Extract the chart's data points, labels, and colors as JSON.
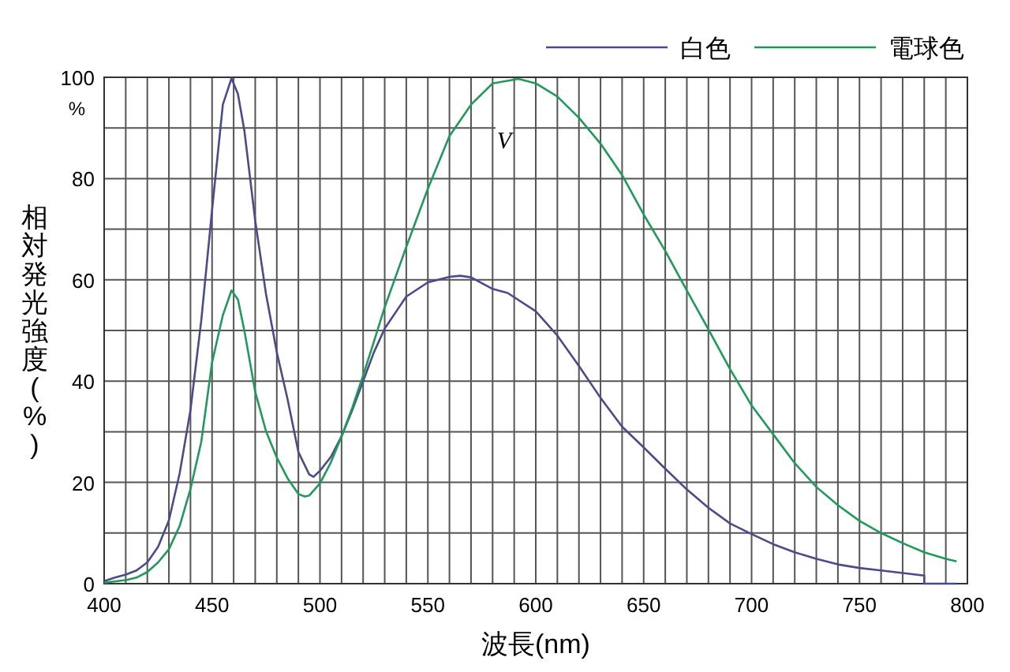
{
  "chart_data": {
    "type": "line",
    "xlabel": "波長(nm)",
    "ylabel": "相対発光強度(%)",
    "xlim": [
      400,
      800
    ],
    "ylim": [
      0,
      100
    ],
    "xticks": [
      400,
      {
        "value": 410,
        "label": null
      },
      {
        "value": 420,
        "label": null
      },
      {
        "value": 430,
        "label": null
      },
      {
        "value": 440,
        "label": null
      },
      450,
      {
        "value": 460,
        "label": null
      },
      {
        "value": 470,
        "label": null
      },
      {
        "value": 480,
        "label": null
      },
      {
        "value": 490,
        "label": null
      },
      500,
      {
        "value": 510,
        "label": null
      },
      {
        "value": 520,
        "label": null
      },
      {
        "value": 530,
        "label": null
      },
      {
        "value": 540,
        "label": null
      },
      550,
      {
        "value": 560,
        "label": null
      },
      {
        "value": 570,
        "label": null
      },
      {
        "value": 580,
        "label": null
      },
      {
        "value": 590,
        "label": null
      },
      600,
      {
        "value": 610,
        "label": null
      },
      {
        "value": 620,
        "label": null
      },
      {
        "value": 630,
        "label": null
      },
      {
        "value": 640,
        "label": null
      },
      650,
      {
        "value": 660,
        "label": null
      },
      {
        "value": 670,
        "label": null
      },
      {
        "value": 680,
        "label": null
      },
      {
        "value": 690,
        "label": null
      },
      700,
      {
        "value": 710,
        "label": null
      },
      {
        "value": 720,
        "label": null
      },
      {
        "value": 730,
        "label": null
      },
      {
        "value": 740,
        "label": null
      },
      750,
      {
        "value": 760,
        "label": null
      },
      {
        "value": 770,
        "label": null
      },
      {
        "value": 780,
        "label": null
      },
      {
        "value": 790,
        "label": null
      },
      800
    ],
    "yticks": [
      0,
      {
        "value": 10,
        "label": null
      },
      20,
      {
        "value": 30,
        "label": null
      },
      40,
      {
        "value": 50,
        "label": null
      },
      60,
      {
        "value": 70,
        "label": null
      },
      80,
      {
        "value": 90,
        "label": null
      },
      100
    ],
    "grid": true,
    "legend": "top right",
    "annotations": [
      "%",
      "V"
    ],
    "series": [
      {
        "name": "白色",
        "color": "#4a4a8c",
        "x": [
          400,
          405,
          410,
          415,
          420,
          425,
          430,
          435,
          440,
          445,
          450,
          455,
          459,
          462,
          465,
          470,
          475,
          480,
          485,
          490,
          495,
          497,
          500,
          505,
          510,
          515,
          520,
          525,
          530,
          540,
          550,
          560,
          565,
          570,
          580,
          587,
          600,
          610,
          620,
          630,
          640,
          650,
          660,
          670,
          680,
          690,
          700,
          710,
          720,
          730,
          740,
          750,
          760,
          770,
          780,
          780,
          795
        ],
        "values": [
          0.5,
          1.2,
          1.8,
          2.6,
          4.2,
          7.3,
          12.5,
          21.8,
          34.3,
          52,
          73.8,
          94.6,
          99.8,
          96.7,
          89.4,
          71.7,
          57.2,
          45.7,
          36.4,
          26,
          21.6,
          21.1,
          22.3,
          25,
          29.1,
          34.3,
          40,
          45.7,
          50.4,
          56.7,
          59.5,
          60.6,
          60.8,
          60.5,
          58.2,
          57.4,
          53.8,
          49,
          43,
          36.7,
          31,
          26.9,
          22.7,
          18.6,
          15,
          11.9,
          9.8,
          7.8,
          6.2,
          4.9,
          3.8,
          3.1,
          2.6,
          2.1,
          1.6,
          0,
          0
        ]
      },
      {
        "name": "電球色",
        "color": "#1f9a5a",
        "x": [
          400,
          410,
          415,
          420,
          425,
          430,
          435,
          440,
          445,
          450,
          455,
          459,
          462,
          465,
          470,
          475,
          480,
          485,
          490,
          493,
          495,
          500,
          505,
          510,
          515,
          520,
          525,
          530,
          540,
          550,
          560,
          570,
          580,
          592,
          600,
          610,
          620,
          630,
          640,
          650,
          660,
          670,
          680,
          690,
          700,
          710,
          720,
          730,
          740,
          750,
          760,
          770,
          780,
          790,
          795
        ],
        "values": [
          0.2,
          0.7,
          1.2,
          2.3,
          4.2,
          6.8,
          11.4,
          18.7,
          28,
          43.7,
          53,
          57.9,
          56.1,
          49.9,
          37.9,
          30.1,
          24.9,
          20.8,
          17.7,
          17.2,
          17.4,
          19.8,
          23.9,
          29.1,
          34.8,
          41.1,
          47.8,
          54.6,
          66.5,
          78,
          88.4,
          94.6,
          98.8,
          99.7,
          98.8,
          96.2,
          92,
          86.9,
          80.7,
          72.9,
          65.7,
          57.9,
          50.2,
          42.4,
          35.2,
          29.5,
          23.8,
          19.1,
          15.5,
          12.4,
          10,
          8,
          6.2,
          4.9,
          4.4
        ]
      }
    ]
  }
}
